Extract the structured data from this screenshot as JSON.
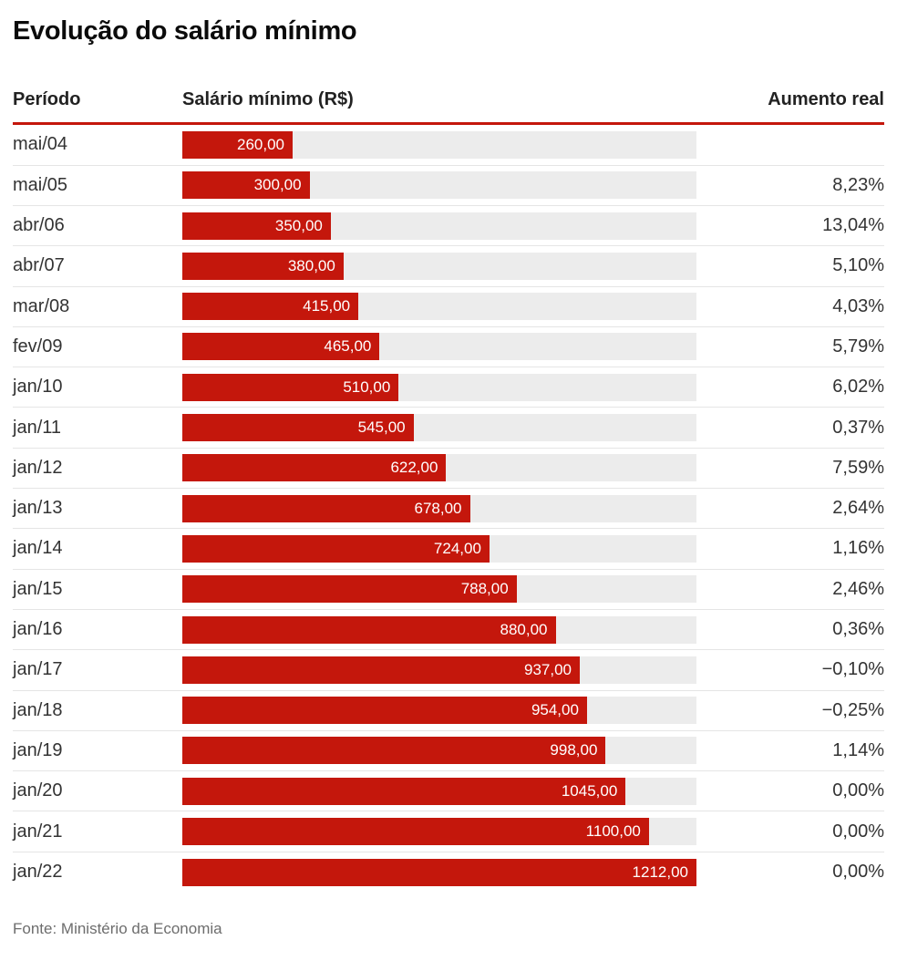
{
  "title": "Evolução do salário mínimo",
  "columns": {
    "period": "Período",
    "salary": "Salário mínimo (R$)",
    "increase": "Aumento real"
  },
  "footer": {
    "source": "Fonte: Ministério da Economia"
  },
  "colors": {
    "bar": "#c4170c",
    "header_rule": "#c4170c",
    "track": "#ececec",
    "row_divider": "#e5e5e5",
    "bar_label_text": "#ffffff"
  },
  "chart_data": {
    "type": "bar",
    "orientation": "horizontal",
    "title": "Evolução do salário mínimo",
    "xlabel": "Salário mínimo (R$)",
    "ylabel": "Período",
    "xlim": [
      0,
      1212
    ],
    "grid": false,
    "legend": "none",
    "categories": [
      "mai/04",
      "mai/05",
      "abr/06",
      "abr/07",
      "mar/08",
      "fev/09",
      "jan/10",
      "jan/11",
      "jan/12",
      "jan/13",
      "jan/14",
      "jan/15",
      "jan/16",
      "jan/17",
      "jan/18",
      "jan/19",
      "jan/20",
      "jan/21",
      "jan/22"
    ],
    "values": [
      260,
      300,
      350,
      380,
      415,
      465,
      510,
      545,
      622,
      678,
      724,
      788,
      880,
      937,
      954,
      998,
      1045,
      1100,
      1212
    ],
    "bar_labels": [
      "260,00",
      "300,00",
      "350,00",
      "380,00",
      "415,00",
      "465,00",
      "510,00",
      "545,00",
      "622,00",
      "678,00",
      "724,00",
      "788,00",
      "880,00",
      "937,00",
      "954,00",
      "998,00",
      "1045,00",
      "1100,00",
      "1212,00"
    ],
    "aumento_real": [
      "",
      "8,23%",
      "13,04%",
      "5,10%",
      "4,03%",
      "5,79%",
      "6,02%",
      "0,37%",
      "7,59%",
      "2,64%",
      "1,16%",
      "2,46%",
      "0,36%",
      "−0,10%",
      "−0,25%",
      "1,14%",
      "0,00%",
      "0,00%",
      "0,00%"
    ],
    "source": "Fonte: Ministério da Economia"
  }
}
